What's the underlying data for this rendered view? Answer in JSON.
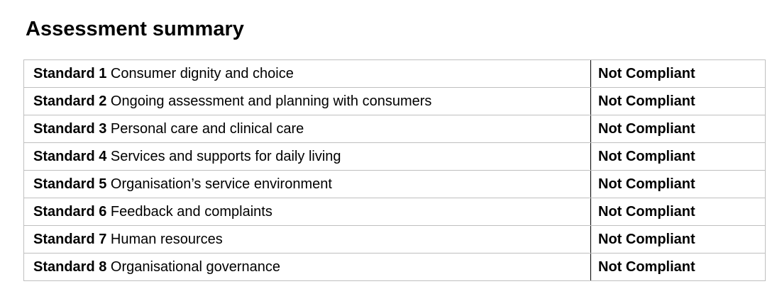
{
  "title": "Assessment summary",
  "table": {
    "rows": [
      {
        "label": "Standard 1",
        "description": "Consumer dignity and choice",
        "status": "Not Compliant"
      },
      {
        "label": "Standard 2",
        "description": "Ongoing assessment and planning with consumers",
        "status": "Not Compliant"
      },
      {
        "label": "Standard 3",
        "description": "Personal care and clinical care",
        "status": "Not Compliant"
      },
      {
        "label": "Standard 4",
        "description": "Services and supports for daily living",
        "status": "Not Compliant"
      },
      {
        "label": "Standard 5",
        "description": "Organisation’s service environment",
        "status": "Not Compliant"
      },
      {
        "label": "Standard 6",
        "description": "Feedback and complaints",
        "status": "Not Compliant"
      },
      {
        "label": "Standard 7",
        "description": "Human resources",
        "status": "Not Compliant"
      },
      {
        "label": "Standard 8",
        "description": "Organisational governance",
        "status": "Not Compliant"
      }
    ]
  },
  "colors": {
    "background": "#ffffff",
    "text": "#000000",
    "grid_border": "#bfbfbf",
    "column_divider": "#000000"
  }
}
